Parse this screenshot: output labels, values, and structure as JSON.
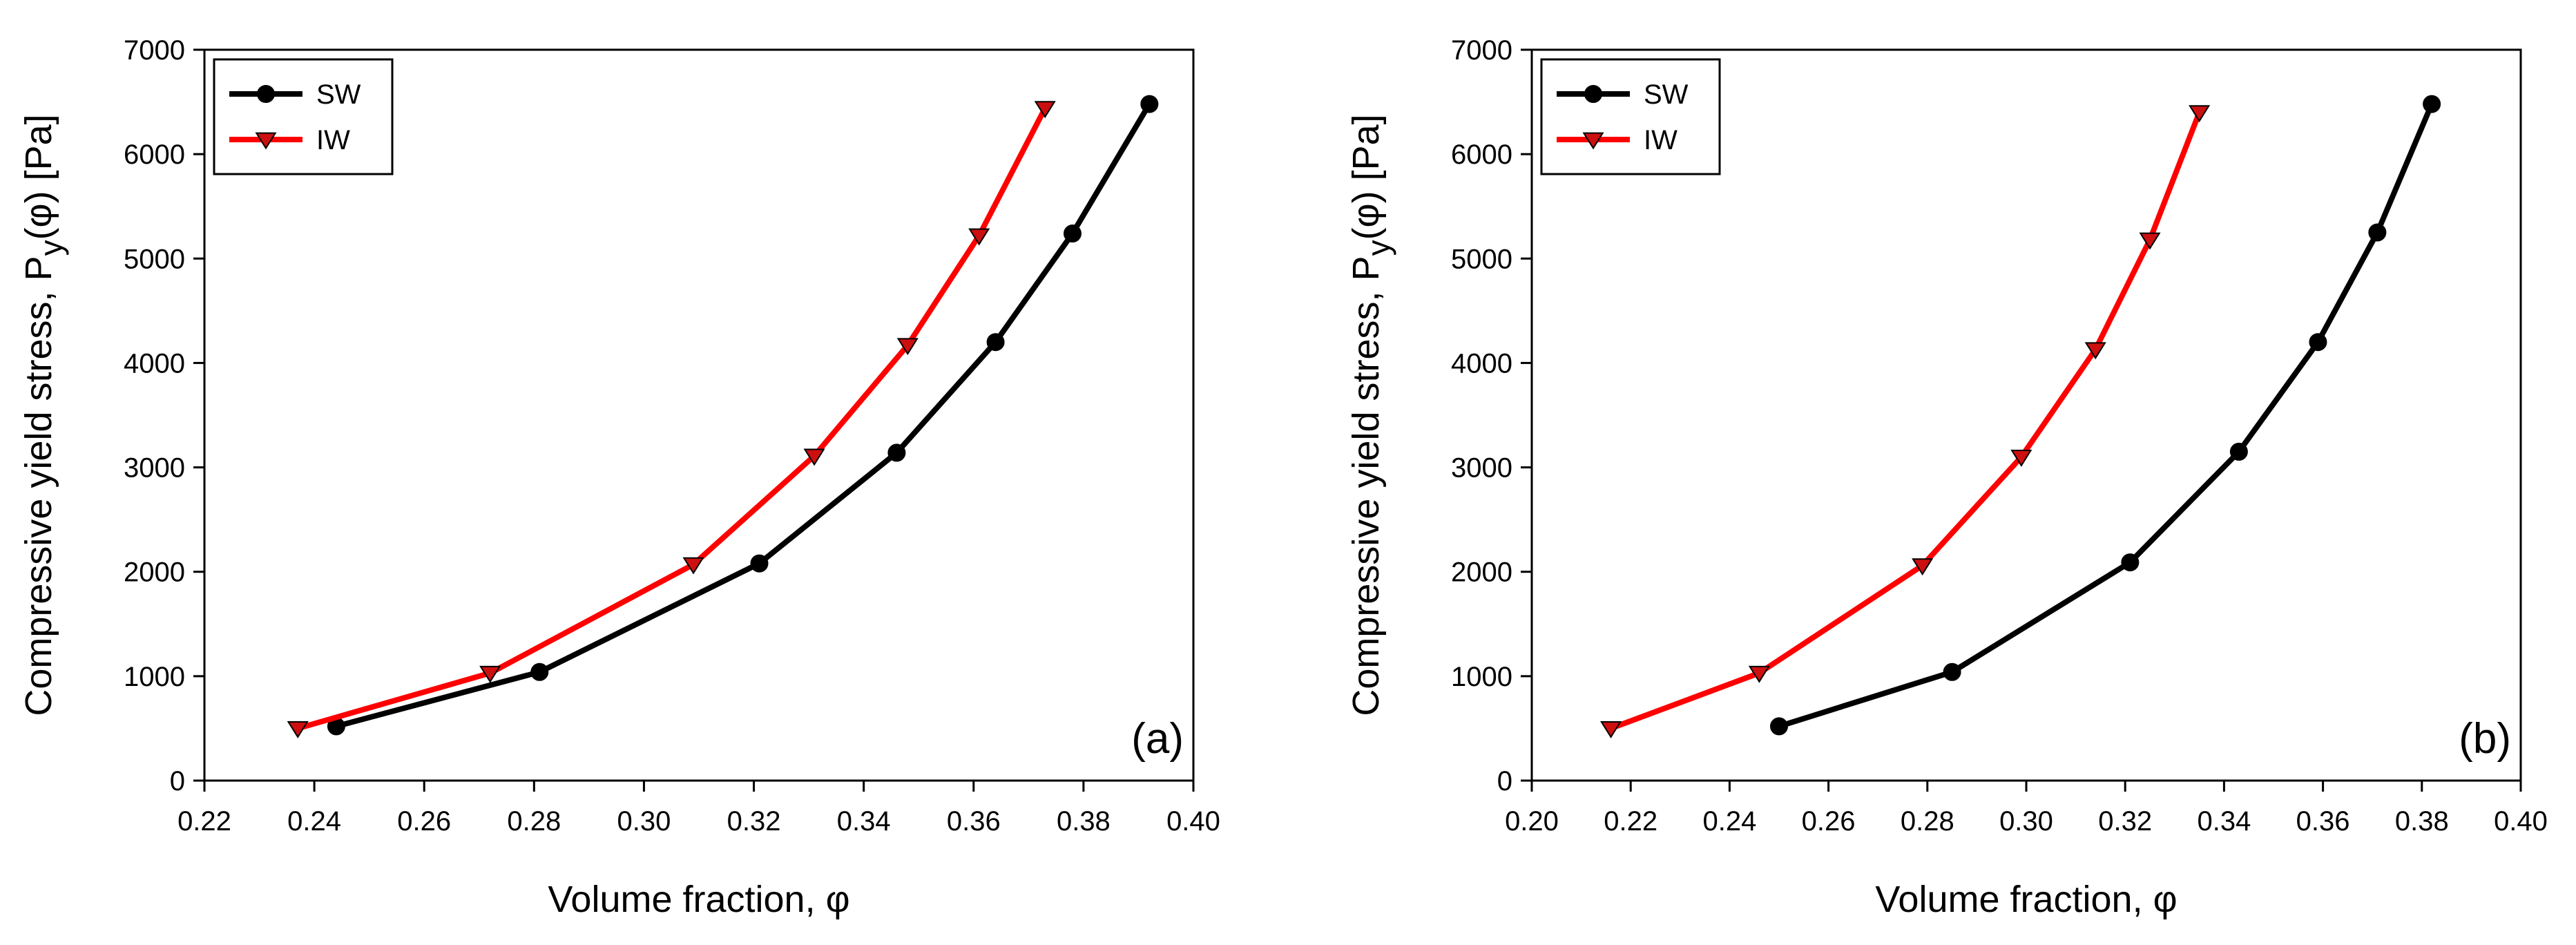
{
  "chart_data": [
    {
      "type": "line",
      "panel_label": "(a)",
      "xlabel": "Volume fraction, φ",
      "ylabel_prefix": "Compressive yield stress, P",
      "ylabel_subscript": "y",
      "ylabel_suffix": "(φ) [Pa]",
      "xlim": [
        0.22,
        0.4
      ],
      "ylim": [
        0,
        7000
      ],
      "xticks": [
        "0.22",
        "0.24",
        "0.26",
        "0.28",
        "0.30",
        "0.32",
        "0.34",
        "0.36",
        "0.38",
        "0.40"
      ],
      "yticks": [
        "0",
        "1000",
        "2000",
        "3000",
        "4000",
        "5000",
        "6000",
        "7000"
      ],
      "grid": false,
      "legend_position": "top-left",
      "series": [
        {
          "name": "SW",
          "color": "#000000",
          "marker": "circle",
          "x": [
            0.244,
            0.281,
            0.321,
            0.346,
            0.364,
            0.378,
            0.392
          ],
          "y": [
            520,
            1040,
            2080,
            3140,
            4200,
            5240,
            6480
          ]
        },
        {
          "name": "IW",
          "color": "#ff0000",
          "marker_fill": "#cc1010",
          "marker": "triangle-down",
          "x": [
            0.237,
            0.272,
            0.309,
            0.331,
            0.348,
            0.361,
            0.373
          ],
          "y": [
            500,
            1030,
            2070,
            3110,
            4170,
            5220,
            6440
          ]
        }
      ]
    },
    {
      "type": "line",
      "panel_label": "(b)",
      "xlabel": "Volume fraction, φ",
      "ylabel_prefix": "Compressive yield stress, P",
      "ylabel_subscript": "y",
      "ylabel_suffix": "(φ) [Pa]",
      "xlim": [
        0.2,
        0.4
      ],
      "ylim": [
        0,
        7000
      ],
      "xticks": [
        "0.20",
        "0.22",
        "0.24",
        "0.26",
        "0.28",
        "0.30",
        "0.32",
        "0.34",
        "0.36",
        "0.38",
        "0.40"
      ],
      "yticks": [
        "0",
        "1000",
        "2000",
        "3000",
        "4000",
        "5000",
        "6000",
        "7000"
      ],
      "grid": false,
      "legend_position": "top-left",
      "series": [
        {
          "name": "SW",
          "color": "#000000",
          "marker": "circle",
          "x": [
            0.25,
            0.285,
            0.321,
            0.343,
            0.359,
            0.371,
            0.382
          ],
          "y": [
            520,
            1040,
            2090,
            3150,
            4200,
            5250,
            6480
          ]
        },
        {
          "name": "IW",
          "color": "#ff0000",
          "marker_fill": "#cc1010",
          "marker": "triangle-down",
          "x": [
            0.216,
            0.246,
            0.279,
            0.299,
            0.314,
            0.325,
            0.335
          ],
          "y": [
            500,
            1030,
            2060,
            3100,
            4130,
            5180,
            6400
          ]
        }
      ]
    }
  ]
}
